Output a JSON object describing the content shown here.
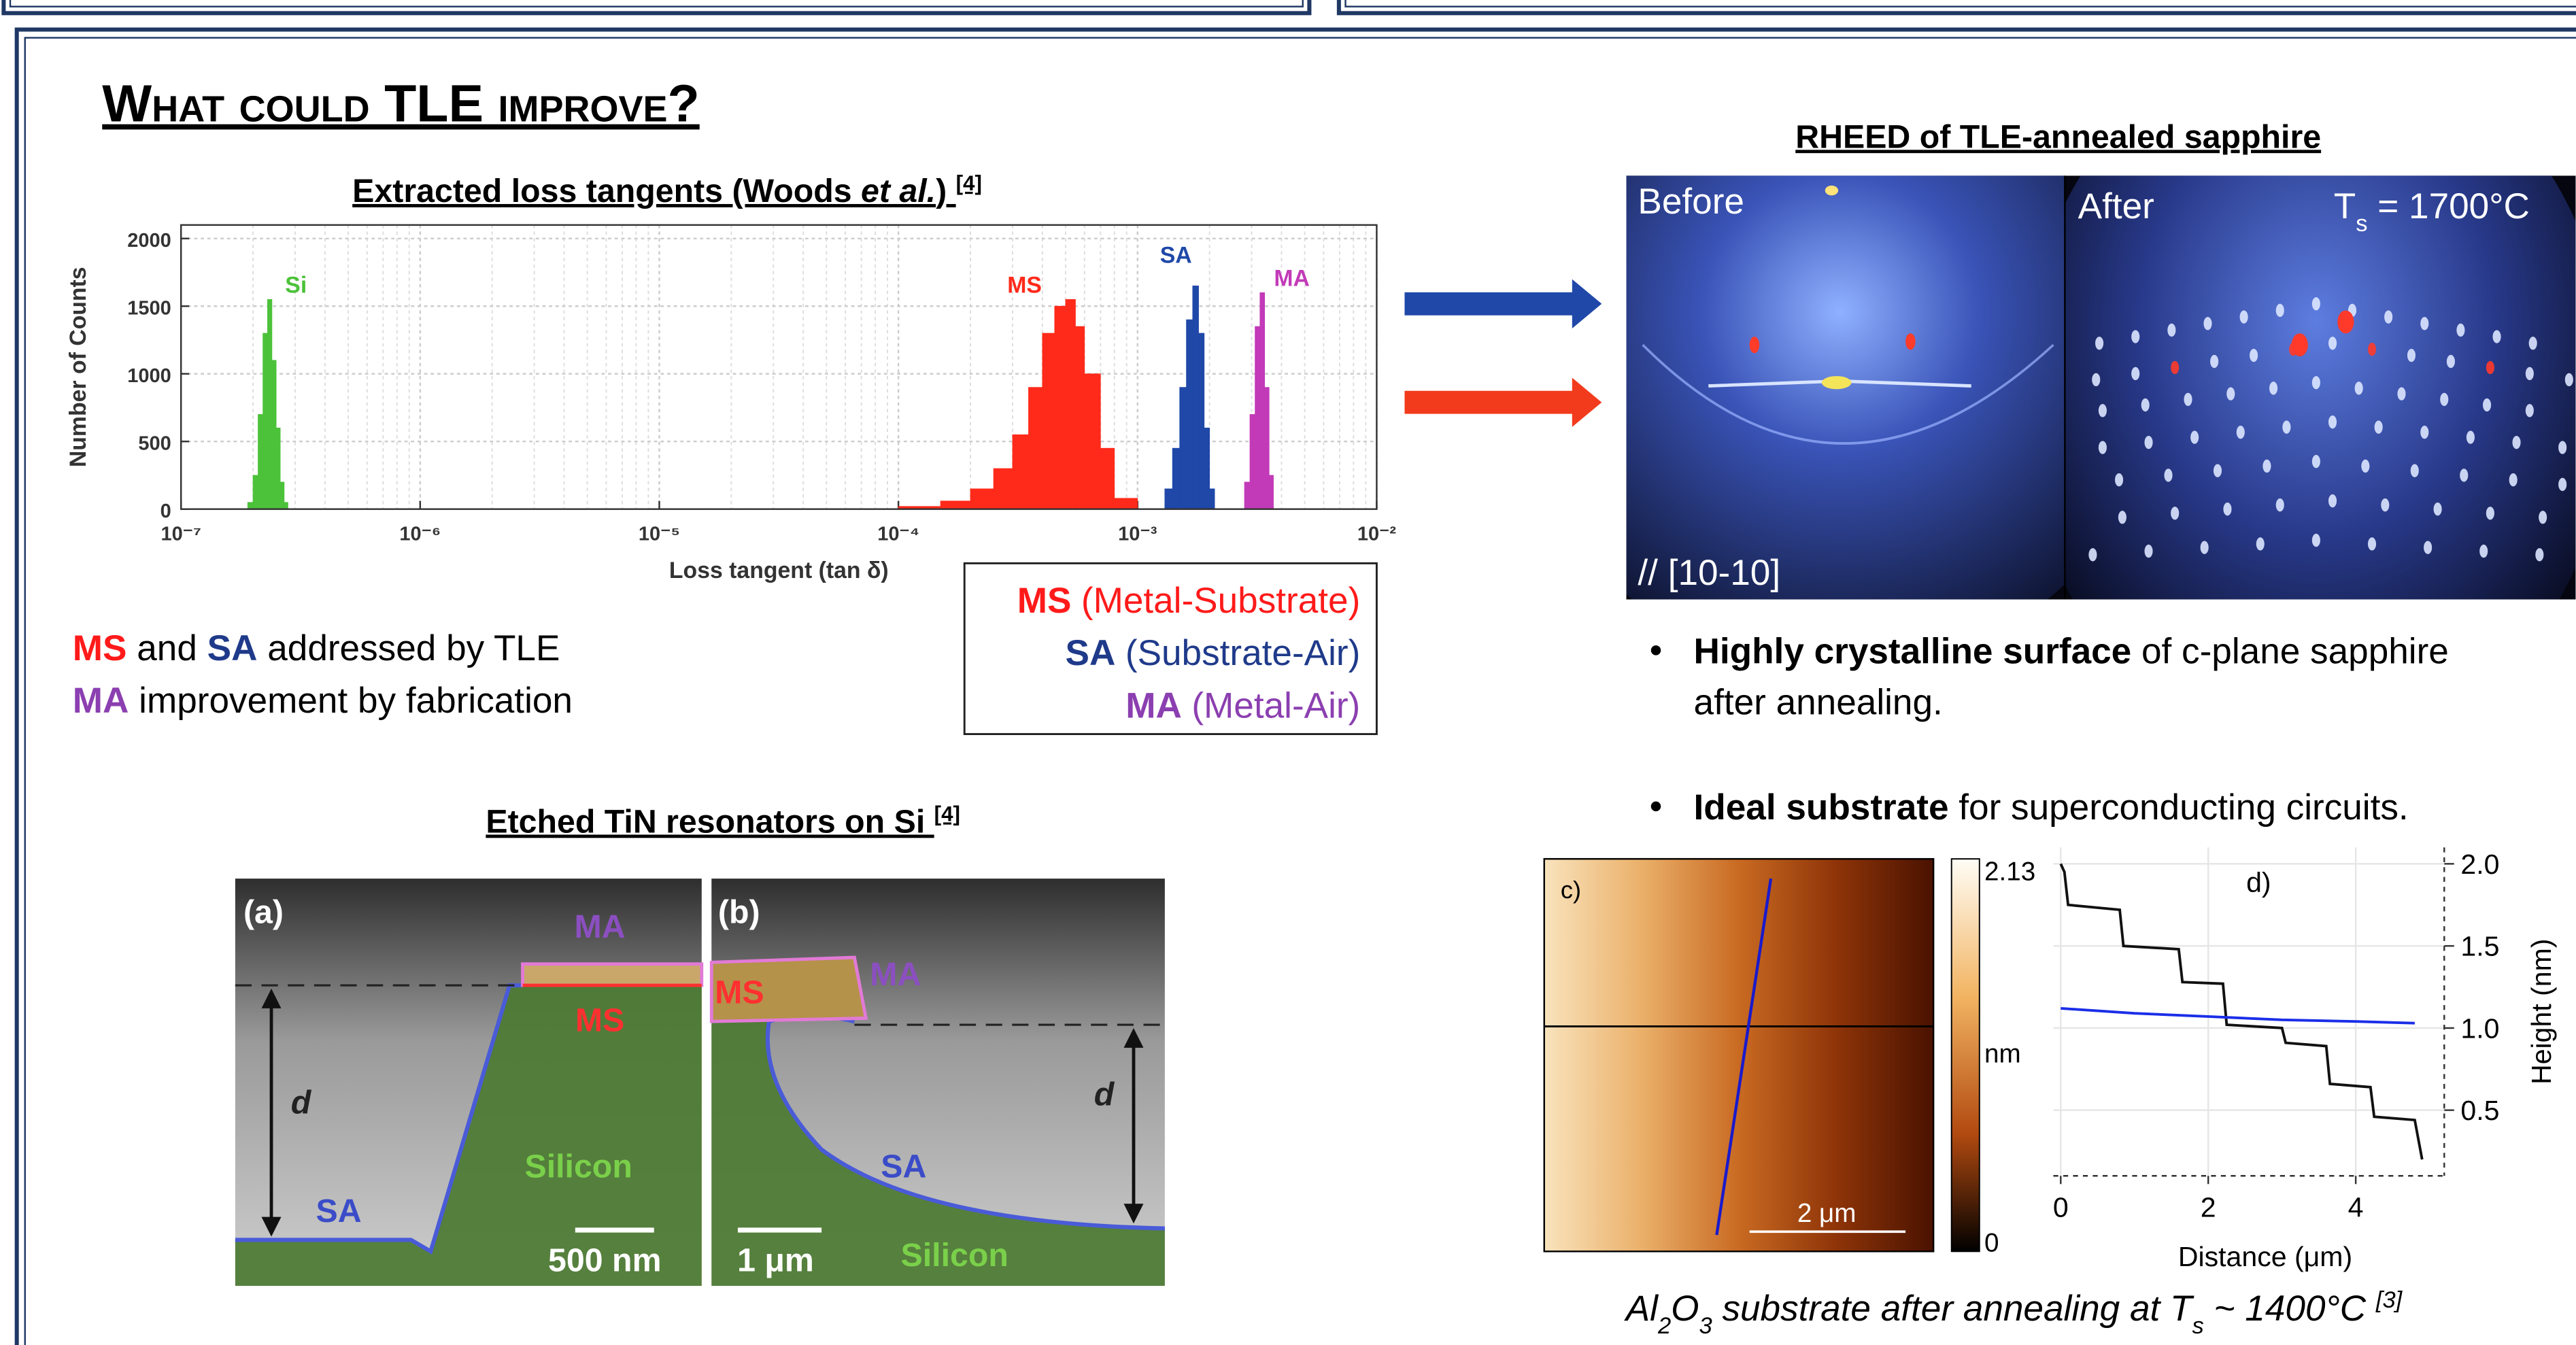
{
  "header": {
    "title": "What could TLE improve?"
  },
  "chart_data": [
    {
      "type": "histogram",
      "title_parts": [
        {
          "text": "Extracted loss tangents (Woods "
        },
        {
          "text": "et al.",
          "italic": true
        },
        {
          "text": ") "
        },
        {
          "text": "[4]",
          "sup": true
        }
      ],
      "x_label": "Loss tangent (tan δ)",
      "y_label": "Number of Counts",
      "xscale": "log",
      "xlim": [
        1e-07,
        0.01
      ],
      "ylim": [
        0,
        2100
      ],
      "xticks": [
        {
          "value": 1e-07,
          "label": "10⁻⁷"
        },
        {
          "value": 1e-06,
          "label": "10⁻⁶"
        },
        {
          "value": 1e-05,
          "label": "10⁻⁵"
        },
        {
          "value": 0.0001,
          "label": "10⁻⁴"
        },
        {
          "value": 0.001,
          "label": "10⁻³"
        },
        {
          "value": 0.01,
          "label": "10⁻²"
        }
      ],
      "yticks": [
        0,
        500,
        1000,
        1500,
        2000
      ],
      "grid": true,
      "series": [
        {
          "name": "Si",
          "color": "#4cc23a",
          "bins": [
            1.9e-07,
            2e-07,
            2.1e-07,
            2.2e-07,
            2.3e-07,
            2.4e-07,
            2.5e-07,
            2.6e-07,
            2.7e-07,
            2.8e-07
          ],
          "values": [
            50,
            250,
            700,
            1300,
            1550,
            1100,
            600,
            200,
            50
          ]
        },
        {
          "name": "MS",
          "color": "#ff2a1a",
          "bins": [
            0.0001,
            0.00015,
            0.0002,
            0.00025,
            0.0003,
            0.00035,
            0.0004,
            0.00045,
            0.0005,
            0.00055,
            0.0006,
            0.0007,
            0.0008,
            0.001
          ],
          "values": [
            20,
            60,
            150,
            300,
            550,
            900,
            1300,
            1500,
            1550,
            1350,
            1000,
            450,
            80
          ]
        },
        {
          "name": "SA",
          "color": "#1f48a8",
          "bins": [
            0.0013,
            0.0014,
            0.0015,
            0.0016,
            0.0017,
            0.0018,
            0.0019,
            0.002,
            0.0021
          ],
          "values": [
            150,
            450,
            900,
            1400,
            1650,
            1300,
            600,
            150
          ]
        },
        {
          "name": "MA",
          "color": "#c23ab8",
          "bins": [
            0.0028,
            0.00295,
            0.0031,
            0.00325,
            0.0034,
            0.00355,
            0.0037
          ],
          "values": [
            200,
            700,
            1350,
            1600,
            900,
            250
          ]
        }
      ]
    },
    {
      "type": "line",
      "label": "d)",
      "x_label": "Distance (μm)",
      "y_label": "Height (nm)",
      "xlim": [
        -0.1,
        5.2
      ],
      "ylim": [
        0.1,
        2.1
      ],
      "xticks": [
        0,
        2,
        4
      ],
      "yticks": [
        0.5,
        {
          "value": 1,
          "label": "1.0"
        },
        1.5,
        {
          "value": 2,
          "label": "2.0"
        }
      ],
      "grid": true,
      "series": [
        {
          "color": "#111111",
          "x": [
            0,
            0.05,
            0.1,
            0.8,
            0.85,
            1.6,
            1.65,
            2.2,
            2.25,
            3.0,
            3.05,
            3.6,
            3.65,
            4.2,
            4.25,
            4.8,
            4.9
          ],
          "values": [
            2.0,
            1.95,
            1.75,
            1.72,
            1.5,
            1.48,
            1.28,
            1.27,
            1.02,
            1.0,
            0.91,
            0.89,
            0.66,
            0.64,
            0.46,
            0.44,
            0.2
          ]
        },
        {
          "color": "#1a2ee8",
          "x": [
            0,
            1,
            2,
            3,
            4,
            4.8
          ],
          "values": [
            1.12,
            1.09,
            1.07,
            1.05,
            1.04,
            1.03
          ]
        }
      ]
    }
  ],
  "notes": [
    [
      {
        "text": "MS",
        "color": "#ff1a1a",
        "bold": true
      },
      {
        "text": " and "
      },
      {
        "text": "SA",
        "color": "#1f3a8a",
        "bold": true
      },
      {
        "text": " addressed by TLE"
      }
    ],
    [
      {
        "text": "MA",
        "color": "#8b3fb0",
        "bold": true
      },
      {
        "text": " improvement by fabrication"
      }
    ]
  ],
  "interfaces": [
    {
      "abbr": "MS",
      "desc": "(Metal-Substrate)",
      "color": "#ff1a1a"
    },
    {
      "abbr": "SA",
      "desc": "(Substrate-Air)",
      "color": "#1f3a8a"
    },
    {
      "abbr": "MA",
      "desc": "(Metal-Air)",
      "color": "#8b3fb0"
    }
  ],
  "sem": {
    "title_parts": [
      {
        "text": "Etched TiN resonators on Si "
      },
      {
        "text": "[4]",
        "sup": true
      }
    ],
    "panel_a": {
      "label": "(a)",
      "ma": "MA",
      "ms": "MS",
      "d": "d",
      "silicon": "Silicon",
      "sa": "SA",
      "scale": "500 nm"
    },
    "panel_b": {
      "label": "(b)",
      "ms": "MS",
      "ma": "MA",
      "d": "d",
      "sa": "SA",
      "scale": "1 μm",
      "silicon": "Silicon"
    }
  },
  "rheed": {
    "title": "RHEED of TLE-annealed sapphire",
    "before": "Before",
    "after": "After",
    "temperature_parts": [
      {
        "text": "T"
      },
      {
        "text": "s",
        "sub": true
      },
      {
        "text": " = 1700°C"
      }
    ],
    "direction": "// [10-10]"
  },
  "bullets": [
    {
      "bold": "Highly crystalline surface",
      "rest": " of c-plane sapphire",
      "continuation": "after annealing."
    },
    {
      "bold": "Ideal substrate",
      "rest": " for superconducting circuits."
    }
  ],
  "afm": {
    "label": "c)",
    "scale": "2 μm",
    "colorbar_max": "2.13",
    "colorbar_unit": "nm",
    "colorbar_min": "0"
  },
  "caption_parts": [
    {
      "text": "Al"
    },
    {
      "text": "2",
      "sub": true
    },
    {
      "text": "O"
    },
    {
      "text": "3",
      "sub": true
    },
    {
      "text": " substrate after annealing at T"
    },
    {
      "text": "s",
      "sub": true
    },
    {
      "text": " ~ 1400°C "
    },
    {
      "text": "[3]",
      "sup": true
    }
  ]
}
